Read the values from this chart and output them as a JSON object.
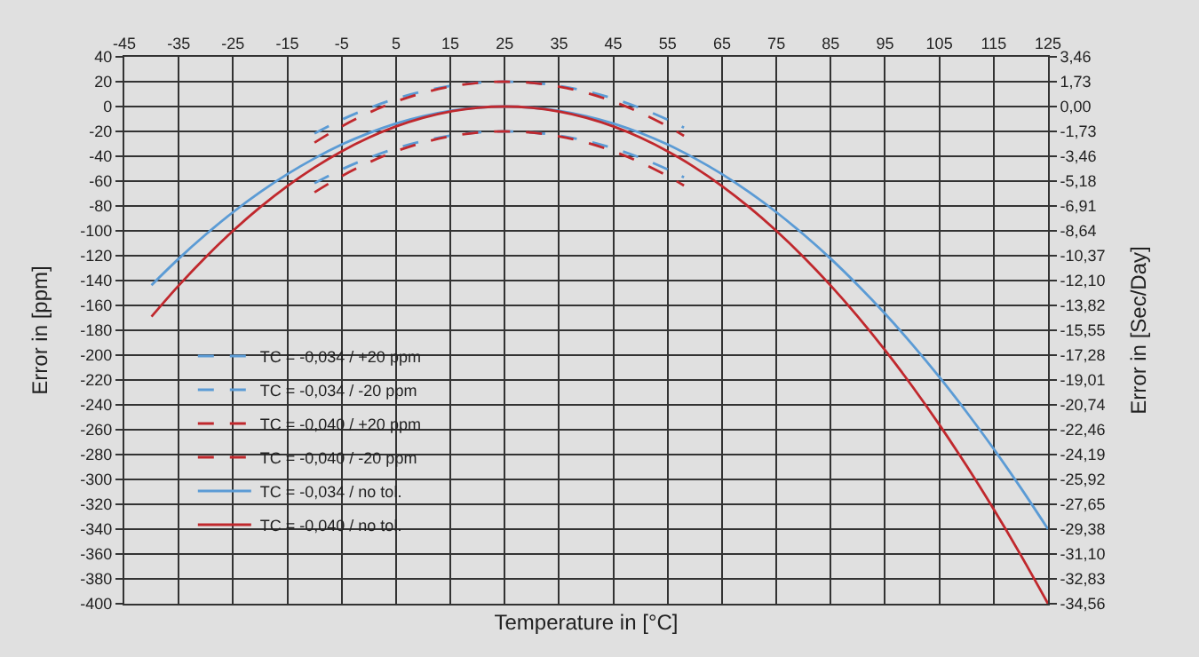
{
  "chart_data": {
    "type": "line",
    "xlabel": "Temperature in [°C]",
    "ylabel": "Error in [ppm]",
    "y2label": "Error in [Sec/Day]",
    "x": [
      -40,
      -35,
      -30,
      -25,
      -20,
      -15,
      -10,
      -5,
      0,
      5,
      10,
      15,
      20,
      25,
      30,
      35,
      40,
      45,
      50,
      55,
      60,
      65,
      70,
      75,
      80,
      85,
      90,
      95,
      100,
      105,
      110,
      115,
      120,
      125
    ],
    "xlim": [
      -45,
      125
    ],
    "xticks": [
      -45,
      -35,
      -25,
      -15,
      -5,
      5,
      15,
      25,
      35,
      45,
      55,
      65,
      75,
      85,
      95,
      105,
      115,
      125
    ],
    "ylim": [
      -400,
      40
    ],
    "yticks": [
      -400,
      -380,
      -360,
      -340,
      -320,
      -300,
      -280,
      -260,
      -240,
      -220,
      -200,
      -180,
      -160,
      -140,
      -120,
      -100,
      -80,
      -60,
      -40,
      -20,
      0,
      20,
      40
    ],
    "y2lim": [
      -34.56,
      3.46
    ],
    "y2ticks": [
      {
        "value": 3.46,
        "label": "3,46"
      },
      {
        "value": 1.73,
        "label": "1,73"
      },
      {
        "value": 0,
        "label": "0,00"
      },
      {
        "value": -1.73,
        "label": "-1,73"
      },
      {
        "value": -3.46,
        "label": "-3,46"
      },
      {
        "value": -5.18,
        "label": "-5,18"
      },
      {
        "value": -6.91,
        "label": "-6,91"
      },
      {
        "value": -8.64,
        "label": "-8,64"
      },
      {
        "value": -10.37,
        "label": "-10,37"
      },
      {
        "value": -12.1,
        "label": "-12,10"
      },
      {
        "value": -13.82,
        "label": "-13,82"
      },
      {
        "value": -15.55,
        "label": "-15,55"
      },
      {
        "value": -17.28,
        "label": "-17,28"
      },
      {
        "value": -19.01,
        "label": "-19,01"
      },
      {
        "value": -20.74,
        "label": "-20,74"
      },
      {
        "value": -22.46,
        "label": "-22,46"
      },
      {
        "value": -24.19,
        "label": "-24,19"
      },
      {
        "value": -25.92,
        "label": "-25,92"
      },
      {
        "value": -27.65,
        "label": "-27,65"
      },
      {
        "value": -29.38,
        "label": "-29,38"
      },
      {
        "value": -31.1,
        "label": "-31,10"
      },
      {
        "value": -32.83,
        "label": "-32,83"
      },
      {
        "value": -34.56,
        "label": "-34,56"
      }
    ],
    "grid": true,
    "legend": "left",
    "marker": "none",
    "series": [
      {
        "name": "TC = -0,034 / +20 ppm",
        "color": "#5b9bd5",
        "line_style": "dashed",
        "x": [
          -10,
          -5,
          0,
          5,
          10,
          15,
          20,
          25,
          30,
          35,
          40,
          45,
          50,
          55,
          58
        ],
        "values": [
          -21.7,
          -10.6,
          -1.3,
          6.4,
          12.3,
          16.6,
          19.1,
          20,
          19.1,
          16.6,
          12.3,
          6.4,
          -1.3,
          -10.6,
          -17
        ]
      },
      {
        "name": "TC = -0,034 / -20 ppm",
        "color": "#5b9bd5",
        "line_style": "dashed",
        "x": [
          -10,
          -5,
          0,
          5,
          10,
          15,
          20,
          25,
          30,
          35,
          40,
          45,
          50,
          55,
          58
        ],
        "values": [
          -61.7,
          -50.6,
          -41.3,
          -33.6,
          -27.7,
          -23.4,
          -20.9,
          -20,
          -20.9,
          -23.4,
          -27.7,
          -33.6,
          -41.3,
          -50.6,
          -57
        ]
      },
      {
        "name": "TC = -0,040 / +20 ppm",
        "color": "#c0282d",
        "line_style": "dashed",
        "x": [
          -10,
          -5,
          0,
          5,
          10,
          15,
          20,
          25,
          30,
          35,
          40,
          45,
          50,
          55,
          58
        ],
        "values": [
          -29,
          -16,
          -5,
          4,
          11,
          16,
          19,
          20,
          19,
          16,
          11,
          4,
          -5,
          -16,
          -23.6
        ]
      },
      {
        "name": "TC = -0,040 / -20 ppm",
        "color": "#c0282d",
        "line_style": "dashed",
        "x": [
          -10,
          -5,
          0,
          5,
          10,
          15,
          20,
          25,
          30,
          35,
          40,
          45,
          50,
          55,
          58
        ],
        "values": [
          -69,
          -56,
          -45,
          -36,
          -29,
          -24,
          -21,
          -20,
          -21,
          -24,
          -29,
          -36,
          -45,
          -56,
          -63.6
        ]
      },
      {
        "name": "TC = -0,034 / no tol.",
        "color": "#5b9bd5",
        "line_style": "solid",
        "values": [
          -143.7,
          -122.4,
          -102.9,
          -85,
          -68.9,
          -54.4,
          -41.7,
          -30.6,
          -21.3,
          -13.6,
          -7.7,
          -3.4,
          -0.9,
          0,
          -0.9,
          -3.4,
          -7.7,
          -13.6,
          -21.3,
          -30.6,
          -41.7,
          -54.4,
          -68.9,
          -85,
          -102.9,
          -122.4,
          -143.7,
          -166.6,
          -191.3,
          -217.6,
          -245.7,
          -275.4,
          -306.9,
          -340
        ]
      },
      {
        "name": "TC = -0,040 / no tol.",
        "color": "#c0282d",
        "line_style": "solid",
        "values": [
          -169,
          -144,
          -121,
          -100,
          -81,
          -64,
          -49,
          -36,
          -25,
          -16,
          -9,
          -4,
          -1,
          0,
          -1,
          -4,
          -9,
          -16,
          -25,
          -36,
          -49,
          -64,
          -81,
          -100,
          -121,
          -144,
          -169,
          -196,
          -225,
          -256,
          -289,
          -324,
          -361,
          -400
        ]
      }
    ]
  }
}
